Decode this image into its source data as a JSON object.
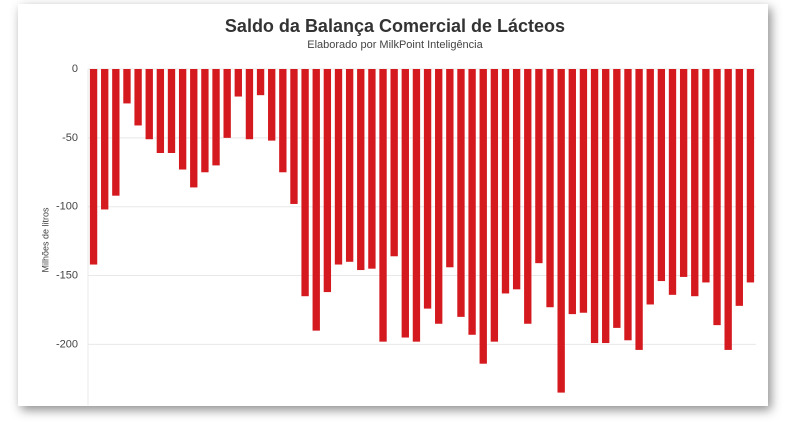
{
  "chart_data": {
    "type": "bar",
    "title": "Saldo da Balança Comercial de Lácteos",
    "subtitle": "Elaborado por MilkPoint Inteligência",
    "y_label": "Milhões de litros",
    "categories": [
      null,
      null,
      null,
      null,
      null,
      null,
      null,
      null,
      null,
      null,
      null,
      null,
      null,
      null,
      null,
      null,
      null,
      null,
      null,
      null,
      null,
      null,
      null,
      null,
      null,
      null,
      null,
      null,
      null,
      null,
      null,
      null,
      null,
      null,
      null,
      null,
      null,
      null,
      null,
      null,
      null,
      null,
      null,
      null,
      null,
      null,
      null,
      null,
      null,
      null,
      null,
      null,
      null,
      null,
      null,
      null,
      null,
      null,
      null,
      null
    ],
    "values": [
      -142,
      -102,
      -92,
      -25,
      -41,
      -51,
      -61,
      -61,
      -73,
      -86,
      -75,
      -70,
      -50,
      -20,
      -51,
      -19,
      -52,
      -75,
      -98,
      -165,
      -190,
      -162,
      -142,
      -140,
      -146,
      -145,
      -198,
      -136,
      -195,
      -198,
      -174,
      -185,
      -144,
      -180,
      -193,
      -214,
      -198,
      -163,
      -160,
      -185,
      -141,
      -173,
      -235,
      -178,
      -177,
      -199,
      -199,
      -188,
      -197,
      -204,
      -171,
      -154,
      -164,
      -151,
      -165,
      -155,
      -186,
      -204,
      -172,
      -155
    ],
    "color": "#d41a1f",
    "ylim": [
      -244,
      0
    ],
    "yticks": [
      0,
      -50,
      -100,
      -150,
      -200
    ],
    "grid": true
  }
}
